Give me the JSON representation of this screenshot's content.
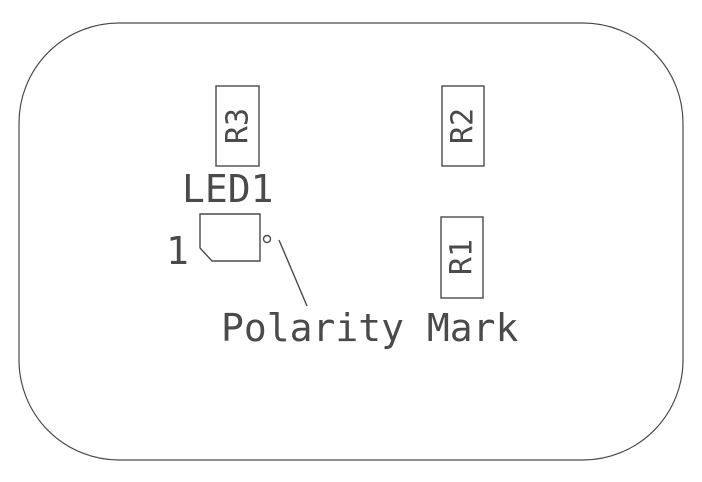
{
  "board": {
    "components": {
      "r3": {
        "reference": "R3"
      },
      "r2": {
        "reference": "R2"
      },
      "r1": {
        "reference": "R1"
      },
      "led1": {
        "reference": "LED1",
        "pin1_label": "1"
      }
    },
    "annotation": {
      "polarity_mark": "Polarity Mark"
    }
  },
  "colors": {
    "silkscreen": "#4a4a4a",
    "background": "#ffffff"
  }
}
